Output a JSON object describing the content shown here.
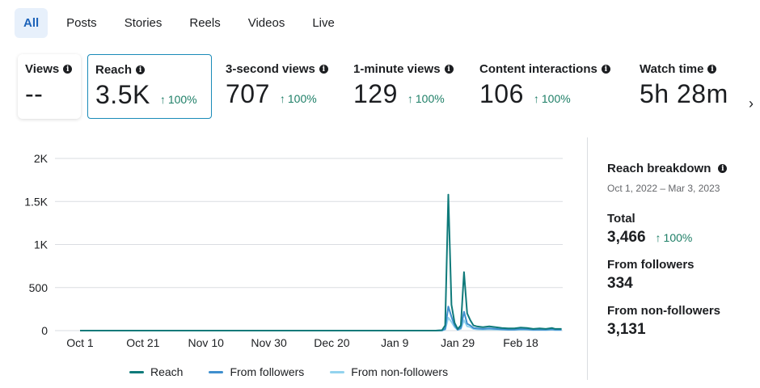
{
  "tabs": [
    {
      "label": "All"
    },
    {
      "label": "Posts"
    },
    {
      "label": "Stories"
    },
    {
      "label": "Reels"
    },
    {
      "label": "Videos"
    },
    {
      "label": "Live"
    }
  ],
  "metrics": [
    {
      "label": "Views",
      "value": "--",
      "change": ""
    },
    {
      "label": "Reach",
      "value": "3.5K",
      "change": "100%"
    },
    {
      "label": "3-second views",
      "value": "707",
      "change": "100%"
    },
    {
      "label": "1-minute views",
      "value": "129",
      "change": "100%"
    },
    {
      "label": "Content interactions",
      "value": "106",
      "change": "100%"
    },
    {
      "label": "Watch time",
      "value": "5h 28m",
      "change": ""
    }
  ],
  "icons": {
    "info": "info-icon",
    "arrow_up": "arrow-up-icon",
    "chevron": "chevron-right-icon"
  },
  "colors": {
    "reach": "#0f7a7a",
    "followers": "#3f8fce",
    "non_followers": "#93d3ee",
    "positive": "#1e7f67",
    "accent": "#1c62b9"
  },
  "chart_data": {
    "type": "line",
    "x": [
      "Oct 1",
      "Oct 5",
      "Oct 10",
      "Oct 15",
      "Oct 21",
      "Oct 25",
      "Oct 31",
      "Nov 5",
      "Nov 10",
      "Nov 15",
      "Nov 20",
      "Nov 25",
      "Nov 30",
      "Dec 5",
      "Dec 10",
      "Dec 15",
      "Dec 20",
      "Dec 25",
      "Dec 30",
      "Jan 4",
      "Jan 9",
      "Jan 14",
      "Jan 19",
      "Jan 22",
      "Jan 24",
      "Jan 25",
      "Jan 26",
      "Jan 27",
      "Jan 28",
      "Jan 29",
      "Jan 30",
      "Jan 31",
      "Feb 1",
      "Feb 2",
      "Feb 3",
      "Feb 4",
      "Feb 6",
      "Feb 8",
      "Feb 10",
      "Feb 12",
      "Feb 14",
      "Feb 16",
      "Feb 18",
      "Feb 20",
      "Feb 22",
      "Feb 24",
      "Feb 26",
      "Feb 28",
      "Mar 1",
      "Mar 3"
    ],
    "series": [
      {
        "name": "Reach",
        "values": [
          0,
          0,
          0,
          0,
          0,
          0,
          0,
          0,
          0,
          0,
          0,
          0,
          0,
          0,
          0,
          0,
          0,
          0,
          0,
          0,
          0,
          0,
          0,
          0,
          5,
          60,
          1580,
          300,
          90,
          20,
          60,
          680,
          200,
          120,
          60,
          50,
          40,
          50,
          40,
          30,
          25,
          25,
          35,
          30,
          20,
          25,
          20,
          30,
          20,
          20
        ]
      },
      {
        "name": "From followers",
        "values": [
          0,
          0,
          0,
          0,
          0,
          0,
          0,
          0,
          0,
          0,
          0,
          0,
          0,
          0,
          0,
          0,
          0,
          0,
          0,
          0,
          0,
          0,
          0,
          0,
          2,
          20,
          280,
          160,
          60,
          10,
          30,
          220,
          80,
          60,
          30,
          25,
          20,
          25,
          20,
          15,
          12,
          12,
          18,
          15,
          10,
          12,
          10,
          15,
          10,
          10
        ]
      },
      {
        "name": "From non-followers",
        "values": [
          0,
          0,
          0,
          0,
          0,
          0,
          0,
          0,
          0,
          0,
          0,
          0,
          0,
          0,
          0,
          0,
          0,
          0,
          0,
          0,
          0,
          0,
          0,
          0,
          1,
          10,
          150,
          100,
          40,
          8,
          20,
          120,
          50,
          40,
          20,
          15,
          12,
          15,
          12,
          10,
          8,
          8,
          12,
          10,
          6,
          8,
          6,
          10,
          6,
          6
        ]
      }
    ],
    "x_ticks": [
      "Oct 1",
      "Oct 21",
      "Nov 10",
      "Nov 30",
      "Dec 20",
      "Jan 9",
      "Jan 29",
      "Feb 18"
    ],
    "y_ticks": [
      "0",
      "500",
      "1K",
      "1.5K",
      "2K"
    ],
    "ylim": [
      0,
      2000
    ],
    "grid": true,
    "legend": "bottom"
  },
  "breakdown": {
    "title": "Reach breakdown",
    "date_range": "Oct 1, 2022 – Mar 3, 2023",
    "total_label": "Total",
    "total_value": "3,466",
    "total_change": "100%",
    "followers_label": "From followers",
    "followers_value": "334",
    "non_followers_label": "From non-followers",
    "non_followers_value": "3,131"
  }
}
